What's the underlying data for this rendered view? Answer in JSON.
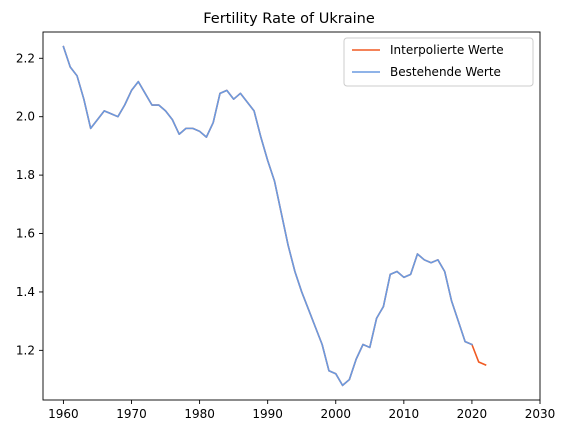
{
  "chart_data": {
    "type": "line",
    "title": "Fertility Rate of Ukraine",
    "xlabel": "",
    "ylabel": "",
    "xlim": [
      1957,
      2030
    ],
    "ylim": [
      1.03,
      2.29
    ],
    "xticks": [
      1960,
      1970,
      1980,
      1990,
      2000,
      2010,
      2020,
      2030
    ],
    "yticks": [
      1.2,
      1.4,
      1.6,
      1.8,
      2.0,
      2.2
    ],
    "ytick_labels": [
      "1.2",
      "1.4",
      "1.6",
      "1.8",
      "2.0",
      "2.2"
    ],
    "grid": false,
    "legend_position": "top-right",
    "series": [
      {
        "name": "Interpolierte Werte",
        "color": "#f05a22",
        "x": [
          1960,
          1961,
          1962,
          1963,
          1964,
          1965,
          1966,
          1967,
          1968,
          1969,
          1970,
          1971,
          1972,
          1973,
          1974,
          1975,
          1976,
          1977,
          1978,
          1979,
          1980,
          1981,
          1982,
          1983,
          1984,
          1985,
          1986,
          1987,
          1988,
          1989,
          1990,
          1991,
          1992,
          1993,
          1994,
          1995,
          1996,
          1997,
          1998,
          1999,
          2000,
          2001,
          2002,
          2003,
          2004,
          2005,
          2006,
          2007,
          2008,
          2009,
          2010,
          2011,
          2012,
          2013,
          2014,
          2015,
          2016,
          2017,
          2018,
          2019,
          2020,
          2021,
          2022
        ],
        "values": [
          2.24,
          2.17,
          2.14,
          2.06,
          1.96,
          1.99,
          2.02,
          2.01,
          2.0,
          2.04,
          2.09,
          2.12,
          2.08,
          2.04,
          2.04,
          2.02,
          1.99,
          1.94,
          1.96,
          1.96,
          1.95,
          1.93,
          1.98,
          2.08,
          2.09,
          2.06,
          2.08,
          2.05,
          2.02,
          1.93,
          1.85,
          1.78,
          1.67,
          1.56,
          1.47,
          1.4,
          1.34,
          1.28,
          1.22,
          1.13,
          1.12,
          1.08,
          1.1,
          1.17,
          1.22,
          1.21,
          1.31,
          1.35,
          1.46,
          1.47,
          1.45,
          1.46,
          1.53,
          1.51,
          1.5,
          1.51,
          1.47,
          1.37,
          1.3,
          1.23,
          1.22,
          1.16,
          1.15
        ]
      },
      {
        "name": "Bestehende Werte",
        "color": "#6a9ae0",
        "x": [
          1960,
          1961,
          1962,
          1963,
          1964,
          1965,
          1966,
          1967,
          1968,
          1969,
          1970,
          1971,
          1972,
          1973,
          1974,
          1975,
          1976,
          1977,
          1978,
          1979,
          1980,
          1981,
          1982,
          1983,
          1984,
          1985,
          1986,
          1987,
          1988,
          1989,
          1990,
          1991,
          1992,
          1993,
          1994,
          1995,
          1996,
          1997,
          1998,
          1999,
          2000,
          2001,
          2002,
          2003,
          2004,
          2005,
          2006,
          2007,
          2008,
          2009,
          2010,
          2011,
          2012,
          2013,
          2014,
          2015,
          2016,
          2017,
          2018,
          2019,
          2020
        ],
        "values": [
          2.24,
          2.17,
          2.14,
          2.06,
          1.96,
          1.99,
          2.02,
          2.01,
          2.0,
          2.04,
          2.09,
          2.12,
          2.08,
          2.04,
          2.04,
          2.02,
          1.99,
          1.94,
          1.96,
          1.96,
          1.95,
          1.93,
          1.98,
          2.08,
          2.09,
          2.06,
          2.08,
          2.05,
          2.02,
          1.93,
          1.85,
          1.78,
          1.67,
          1.56,
          1.47,
          1.4,
          1.34,
          1.28,
          1.22,
          1.13,
          1.12,
          1.08,
          1.1,
          1.17,
          1.22,
          1.21,
          1.31,
          1.35,
          1.46,
          1.47,
          1.45,
          1.46,
          1.53,
          1.51,
          1.5,
          1.51,
          1.47,
          1.37,
          1.3,
          1.23,
          1.22
        ]
      }
    ]
  }
}
